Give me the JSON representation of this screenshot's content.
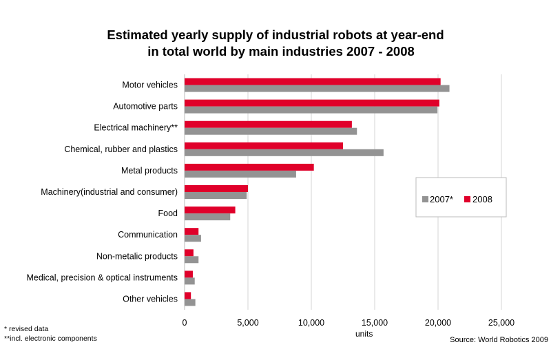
{
  "chart_data": {
    "type": "bar",
    "orientation": "horizontal",
    "title": "Estimated yearly supply of industrial robots at year-end",
    "subtitle": "in total world by main industries 2007 - 2008",
    "xlabel": "units",
    "ylabel": "",
    "xlim": [
      0,
      25000
    ],
    "x_ticks": [
      0,
      5000,
      10000,
      15000,
      20000,
      25000
    ],
    "x_tick_labels": [
      "0",
      "5,000",
      "10,000",
      "15,000",
      "20,000",
      "25,000"
    ],
    "grid": "vertical",
    "legend_placement": "right",
    "categories": [
      "Motor vehicles",
      "Automotive parts",
      "Electrical machinery**",
      "Chemical, rubber and plastics",
      "Metal products",
      "Machinery(industrial and consumer)",
      "Food",
      "Communication",
      "Non-metalic products",
      "Medical, precision & optical instruments",
      "Other vehicles"
    ],
    "series": [
      {
        "name": "2007*",
        "color": "#939393",
        "values": [
          20900,
          19950,
          13600,
          15700,
          8800,
          4900,
          3600,
          1300,
          1100,
          800,
          850
        ]
      },
      {
        "name": "2008",
        "color": "#e0002a",
        "values": [
          20200,
          20100,
          13200,
          12500,
          10200,
          5000,
          4000,
          1100,
          700,
          650,
          500
        ]
      }
    ],
    "footnotes": [
      "* revised data",
      "**incl. electronic components"
    ],
    "source": "Source: World Robotics  2009"
  }
}
